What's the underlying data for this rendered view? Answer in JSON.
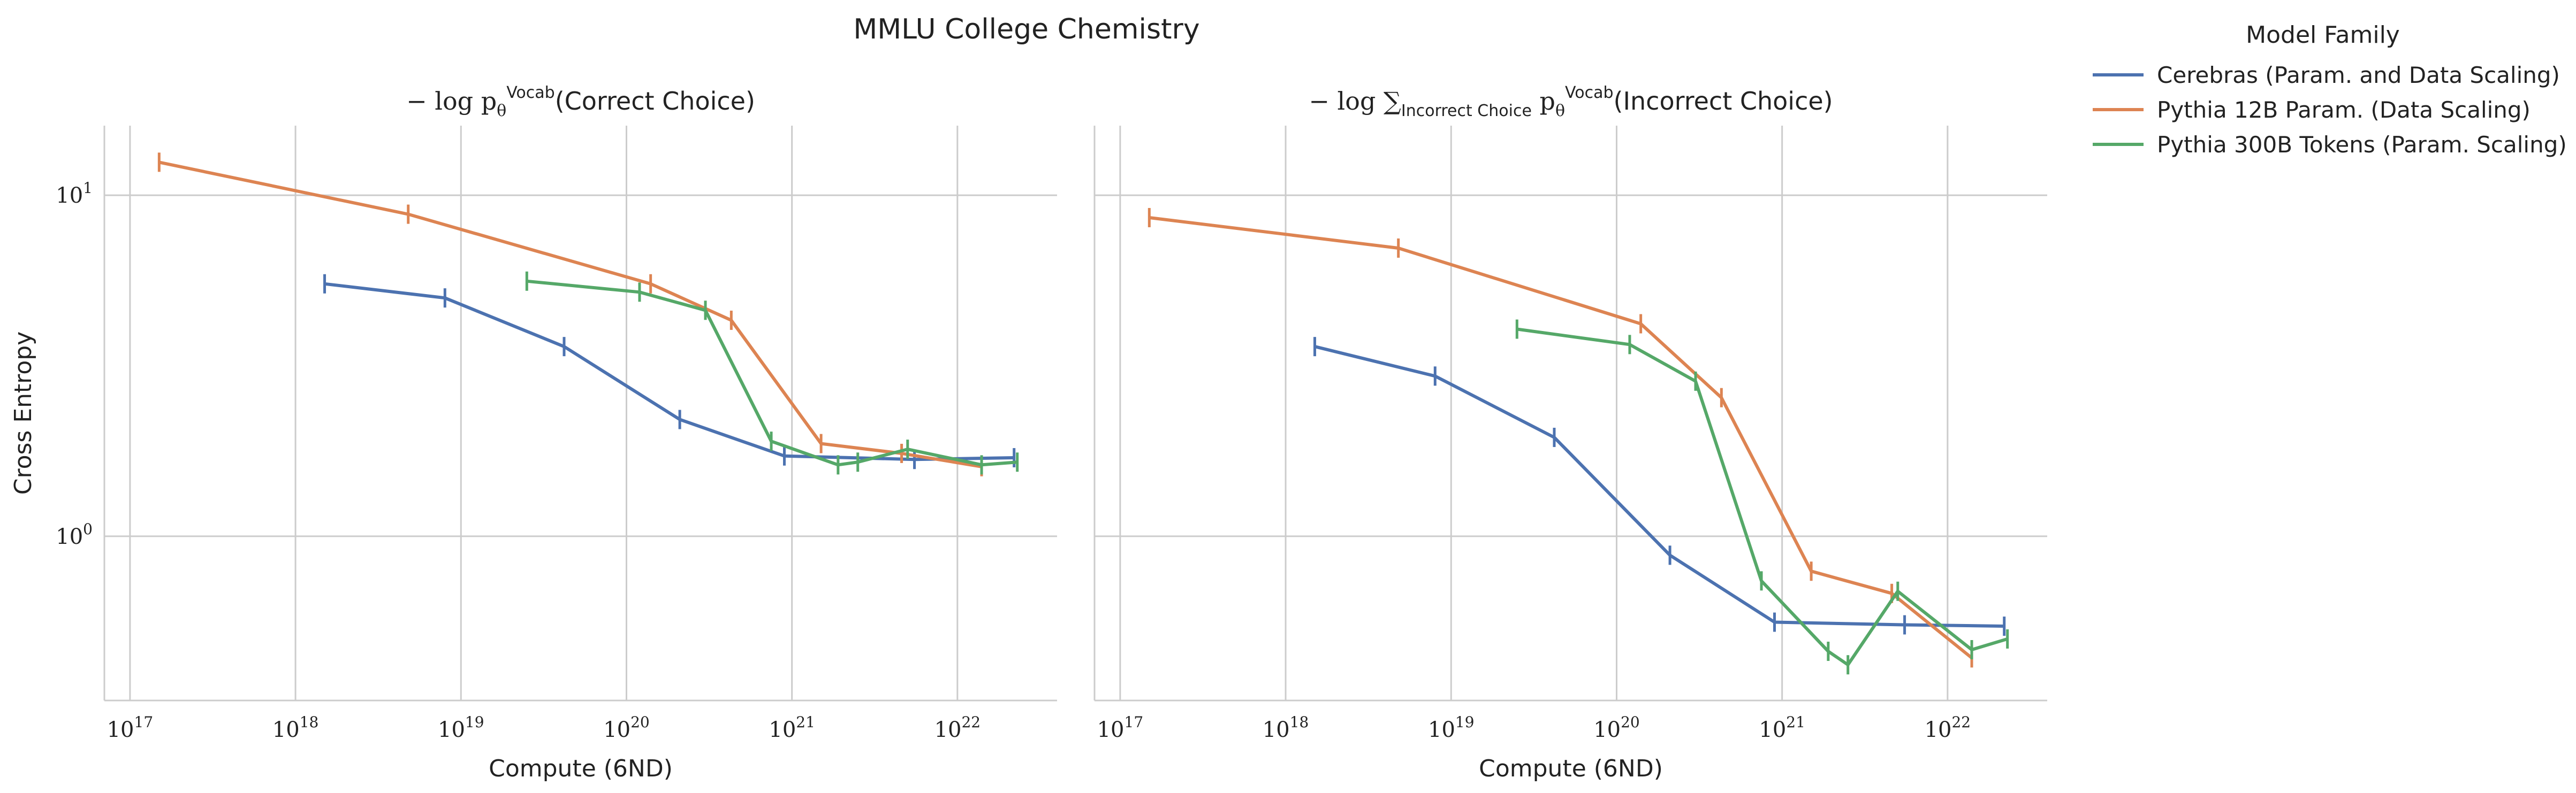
{
  "figure": {
    "title": "MMLU College Chemistry",
    "legend_title": "Model Family"
  },
  "chart_data": [
    {
      "type": "line",
      "title": "− log pθVocab(Correct Choice)",
      "title_parts": {
        "prefix": "− log ",
        "sub": "θ",
        "sup": "Vocab",
        "suffix": "(Correct Choice)"
      },
      "xlabel": "Compute (6ND)",
      "ylabel": "Cross Entropy",
      "x_scale": "log",
      "y_scale": "log",
      "xlim": [
        7e+16,
        4e+22
      ],
      "ylim": [
        0.33,
        16.0
      ],
      "x_ticks": [
        1e+17,
        1e+18,
        1e+19,
        1e+20,
        1e+21,
        1e+22
      ],
      "x_tick_labels": [
        "10^17",
        "10^18",
        "10^19",
        "10^20",
        "10^21",
        "10^22"
      ],
      "y_ticks": [
        1,
        10
      ],
      "y_tick_labels": [
        "10^0",
        "10^1"
      ],
      "grid": true,
      "series": [
        {
          "name": "Cerebras (Param. and Data Scaling)",
          "color": "#4c72b0",
          "x": [
            1.5e+18,
            8e+18,
            4.2e+19,
            2.1e+20,
            9e+20,
            5.5e+21,
            2.2e+22
          ],
          "y": [
            5.5,
            5.0,
            3.6,
            2.2,
            1.72,
            1.68,
            1.7
          ]
        },
        {
          "name": "Pythia 12B Param. (Data Scaling)",
          "color": "#dd8452",
          "x": [
            1.5e+17,
            4.8e+18,
            1.4e+20,
            4.3e+20,
            1.5e+21,
            4.6e+21,
            1.4e+22
          ],
          "y": [
            12.5,
            8.8,
            5.5,
            4.3,
            1.87,
            1.75,
            1.6
          ]
        },
        {
          "name": "Pythia 300B Tokens (Param. Scaling)",
          "color": "#55a868",
          "x": [
            2.5e+19,
            1.2e+20,
            3e+20,
            7.5e+20,
            1.9e+21,
            2.5e+21,
            5e+21,
            1.4e+22,
            2.3e+22
          ],
          "y": [
            5.6,
            5.2,
            4.6,
            1.9,
            1.62,
            1.65,
            1.8,
            1.62,
            1.65
          ]
        }
      ]
    },
    {
      "type": "line",
      "title": "− log ∑Incorrect Choice pθVocab(Incorrect Choice)",
      "title_parts": {
        "prefix": "− log ∑",
        "sum_sub": "Incorrect Choice",
        "p": " p",
        "sub": "θ",
        "sup": "Vocab",
        "suffix": "(Incorrect Choice)"
      },
      "xlabel": "Compute (6ND)",
      "ylabel": "",
      "x_scale": "log",
      "y_scale": "log",
      "xlim": [
        7e+16,
        4e+22
      ],
      "ylim": [
        0.33,
        16.0
      ],
      "x_ticks": [
        1e+17,
        1e+18,
        1e+19,
        1e+20,
        1e+21,
        1e+22
      ],
      "x_tick_labels": [
        "10^17",
        "10^18",
        "10^19",
        "10^20",
        "10^21",
        "10^22"
      ],
      "y_ticks": [
        1,
        10
      ],
      "y_tick_labels": [
        "10^0",
        "10^1"
      ],
      "grid": true,
      "series": [
        {
          "name": "Cerebras (Param. and Data Scaling)",
          "color": "#4c72b0",
          "x": [
            1.5e+18,
            8e+18,
            4.2e+19,
            2.1e+20,
            9e+20,
            5.5e+21,
            2.2e+22
          ],
          "y": [
            3.6,
            2.95,
            1.95,
            0.88,
            0.56,
            0.55,
            0.545
          ]
        },
        {
          "name": "Pythia 12B Param. (Data Scaling)",
          "color": "#dd8452",
          "x": [
            1.5e+17,
            4.8e+18,
            1.4e+20,
            4.3e+20,
            1.5e+21,
            4.6e+21,
            1.4e+22
          ],
          "y": [
            8.6,
            7.0,
            4.2,
            2.55,
            0.79,
            0.68,
            0.44
          ]
        },
        {
          "name": "Pythia 300B Tokens (Param. Scaling)",
          "color": "#55a868",
          "x": [
            2.5e+19,
            1.2e+20,
            3e+20,
            7.5e+20,
            1.9e+21,
            2.5e+21,
            5e+21,
            1.4e+22,
            2.3e+22
          ],
          "y": [
            4.05,
            3.65,
            2.85,
            0.74,
            0.46,
            0.42,
            0.69,
            0.465,
            0.5
          ]
        }
      ]
    }
  ],
  "legend": {
    "placement": "outside-right",
    "entries": [
      {
        "label": "Cerebras (Param. and Data Scaling)",
        "color": "#4c72b0"
      },
      {
        "label": "Pythia 12B Param. (Data Scaling)",
        "color": "#dd8452"
      },
      {
        "label": "Pythia 300B Tokens (Param. Scaling)",
        "color": "#55a868"
      }
    ]
  }
}
